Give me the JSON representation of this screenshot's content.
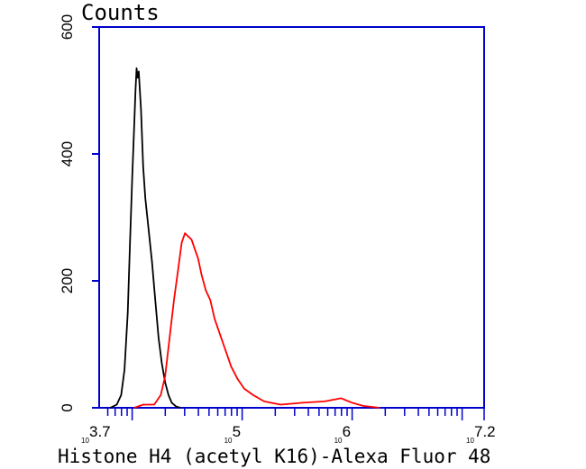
{
  "chart_data": {
    "type": "line",
    "title": "Counts",
    "xlabel": "Histone H4 (acetyl K16)-Alexa Fluor 48",
    "ylabel": "",
    "x_scale": "log",
    "xlim": [
      3.7,
      7.2
    ],
    "ylim": [
      0,
      600
    ],
    "y_ticks": [
      {
        "value": 0,
        "label": "0"
      },
      {
        "value": 200,
        "label": "200"
      },
      {
        "value": 400,
        "label": "400"
      },
      {
        "value": 600,
        "label": "600"
      }
    ],
    "x_ticks": [
      {
        "value": 3.7,
        "base": "10",
        "exp": "3.7"
      },
      {
        "value": 5,
        "base": "10",
        "exp": "5"
      },
      {
        "value": 6,
        "base": "10",
        "exp": "6"
      },
      {
        "value": 7.2,
        "base": "10",
        "exp": "7.2"
      }
    ],
    "grid": false,
    "legend": "none",
    "axis_color": "#0000cc",
    "series": [
      {
        "color": "#000000",
        "points": [
          [
            3.8,
            0
          ],
          [
            3.86,
            5
          ],
          [
            3.9,
            20
          ],
          [
            3.93,
            60
          ],
          [
            3.96,
            150
          ],
          [
            3.98,
            260
          ],
          [
            4.0,
            360
          ],
          [
            4.02,
            450
          ],
          [
            4.03,
            500
          ],
          [
            4.04,
            535
          ],
          [
            4.05,
            520
          ],
          [
            4.06,
            530
          ],
          [
            4.08,
            470
          ],
          [
            4.1,
            380
          ],
          [
            4.12,
            330
          ],
          [
            4.15,
            280
          ],
          [
            4.18,
            230
          ],
          [
            4.21,
            170
          ],
          [
            4.24,
            110
          ],
          [
            4.27,
            70
          ],
          [
            4.3,
            40
          ],
          [
            4.33,
            20
          ],
          [
            4.36,
            8
          ],
          [
            4.4,
            2
          ],
          [
            4.44,
            0
          ]
        ]
      },
      {
        "color": "#ff0000",
        "points": [
          [
            4.02,
            0
          ],
          [
            4.1,
            5
          ],
          [
            4.2,
            5
          ],
          [
            4.26,
            20
          ],
          [
            4.3,
            50
          ],
          [
            4.34,
            110
          ],
          [
            4.38,
            170
          ],
          [
            4.42,
            220
          ],
          [
            4.45,
            260
          ],
          [
            4.48,
            275
          ],
          [
            4.51,
            270
          ],
          [
            4.54,
            265
          ],
          [
            4.57,
            250
          ],
          [
            4.6,
            235
          ],
          [
            4.63,
            210
          ],
          [
            4.67,
            185
          ],
          [
            4.71,
            170
          ],
          [
            4.75,
            140
          ],
          [
            4.8,
            115
          ],
          [
            4.85,
            90
          ],
          [
            4.9,
            65
          ],
          [
            4.96,
            45
          ],
          [
            5.02,
            30
          ],
          [
            5.1,
            20
          ],
          [
            5.2,
            10
          ],
          [
            5.35,
            5
          ],
          [
            5.55,
            8
          ],
          [
            5.75,
            10
          ],
          [
            5.9,
            15
          ],
          [
            6.0,
            8
          ],
          [
            6.1,
            3
          ],
          [
            6.25,
            0
          ]
        ]
      }
    ]
  }
}
